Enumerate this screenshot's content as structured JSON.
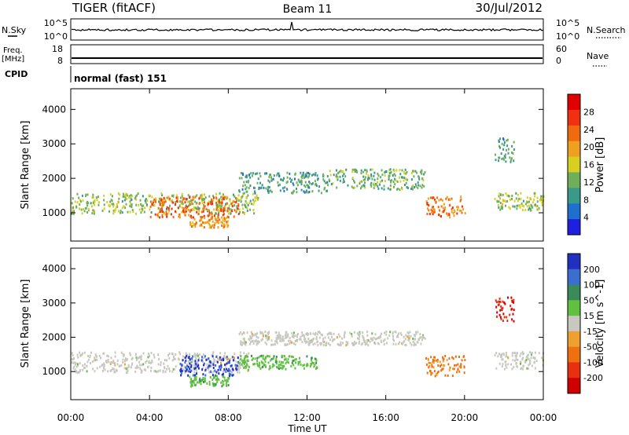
{
  "header": {
    "station": "TIGER (fitACF)",
    "beam": "Beam 11",
    "date": "30/Jul/2012"
  },
  "params": {
    "nsky_label": "N.Sky",
    "nsky_ticks": [
      "10^5",
      "10^0"
    ],
    "nsearch_label": "N.Search",
    "nsearch_ticks": [
      "10^5",
      "10^0"
    ],
    "freq_label": "Freq.",
    "freq_unit": "[MHz]",
    "freq_ticks": [
      "18",
      "8"
    ],
    "nave_label": "Nave",
    "nave_ticks": [
      "60",
      "0"
    ],
    "cpid_label": "CPID",
    "cpid_value": "normal (fast) 151"
  },
  "colors": {
    "power_scale": [
      "#1f1fe0",
      "#1f6fd0",
      "#3a9a8a",
      "#6faf5a",
      "#d8d020",
      "#f0a020",
      "#f06a10",
      "#f03010",
      "#e00000"
    ],
    "velocity_scale": [
      "#2030c0",
      "#3a6fd0",
      "#3a8a5a",
      "#60c040",
      "#c8c8c0",
      "#f0a030",
      "#f07010",
      "#e83010",
      "#d00000"
    ],
    "ground_scatter": "#c8c8c0"
  },
  "chart_data": [
    {
      "type": "heatmap",
      "title": "Power",
      "ylabel": "Slant Range [km]",
      "xlabel": "",
      "xticks": [
        "00:00",
        "04:00",
        "08:00",
        "12:00",
        "16:00",
        "20:00",
        "00:00"
      ],
      "xlim_hours": [
        0,
        24
      ],
      "yticks": [
        1000,
        2000,
        3000,
        4000
      ],
      "ylim": [
        180,
        4600
      ],
      "colorbar": {
        "label": "Power [dB]",
        "ticks": [
          4,
          8,
          12,
          16,
          20,
          24,
          28
        ],
        "range": [
          0,
          32
        ]
      },
      "echo_regions": [
        {
          "t_start": 0.0,
          "t_end": 9.5,
          "r_min": 1000,
          "r_max": 1600,
          "power_db": 14
        },
        {
          "t_start": 4.0,
          "t_end": 8.5,
          "r_min": 900,
          "r_max": 1500,
          "power_db": 24
        },
        {
          "t_start": 6.0,
          "t_end": 8.0,
          "r_min": 600,
          "r_max": 900,
          "power_db": 20
        },
        {
          "t_start": 8.5,
          "t_end": 13.0,
          "r_min": 1600,
          "r_max": 2200,
          "power_db": 10
        },
        {
          "t_start": 13.0,
          "t_end": 18.0,
          "r_min": 1700,
          "r_max": 2300,
          "power_db": 12
        },
        {
          "t_start": 18.0,
          "t_end": 20.0,
          "r_min": 900,
          "r_max": 1500,
          "power_db": 22
        },
        {
          "t_start": 21.5,
          "t_end": 24.0,
          "r_min": 1100,
          "r_max": 1600,
          "power_db": 14
        },
        {
          "t_start": 21.5,
          "t_end": 22.5,
          "r_min": 2500,
          "r_max": 3200,
          "power_db": 10
        }
      ]
    },
    {
      "type": "heatmap",
      "title": "Velocity",
      "ylabel": "Slant Range [km]",
      "xlabel": "Time UT",
      "xticks": [
        "00:00",
        "04:00",
        "08:00",
        "12:00",
        "16:00",
        "20:00",
        "00:00"
      ],
      "xlim_hours": [
        0,
        24
      ],
      "yticks": [
        1000,
        2000,
        3000,
        4000
      ],
      "ylim": [
        180,
        4600
      ],
      "colorbar": {
        "label": "Velocity [m s^-1]",
        "ticks": [
          200,
          100,
          50,
          15,
          -15,
          -50,
          -100,
          -200
        ],
        "range": [
          -250,
          250
        ]
      },
      "echo_regions": [
        {
          "t_start": 0.0,
          "t_end": 9.0,
          "r_min": 1000,
          "r_max": 1600,
          "velocity": 0
        },
        {
          "t_start": 5.5,
          "t_end": 8.5,
          "r_min": 900,
          "r_max": 1500,
          "velocity": 200
        },
        {
          "t_start": 6.0,
          "t_end": 8.0,
          "r_min": 600,
          "r_max": 900,
          "velocity": 60
        },
        {
          "t_start": 8.5,
          "t_end": 12.5,
          "r_min": 1100,
          "r_max": 1500,
          "velocity": 60
        },
        {
          "t_start": 8.5,
          "t_end": 18.0,
          "r_min": 1800,
          "r_max": 2200,
          "velocity": 0
        },
        {
          "t_start": 18.0,
          "t_end": 20.0,
          "r_min": 900,
          "r_max": 1500,
          "velocity": -100
        },
        {
          "t_start": 21.5,
          "t_end": 24.0,
          "r_min": 1100,
          "r_max": 1600,
          "velocity": 0
        },
        {
          "t_start": 21.5,
          "t_end": 22.5,
          "r_min": 2500,
          "r_max": 3200,
          "velocity": -200
        }
      ]
    }
  ]
}
